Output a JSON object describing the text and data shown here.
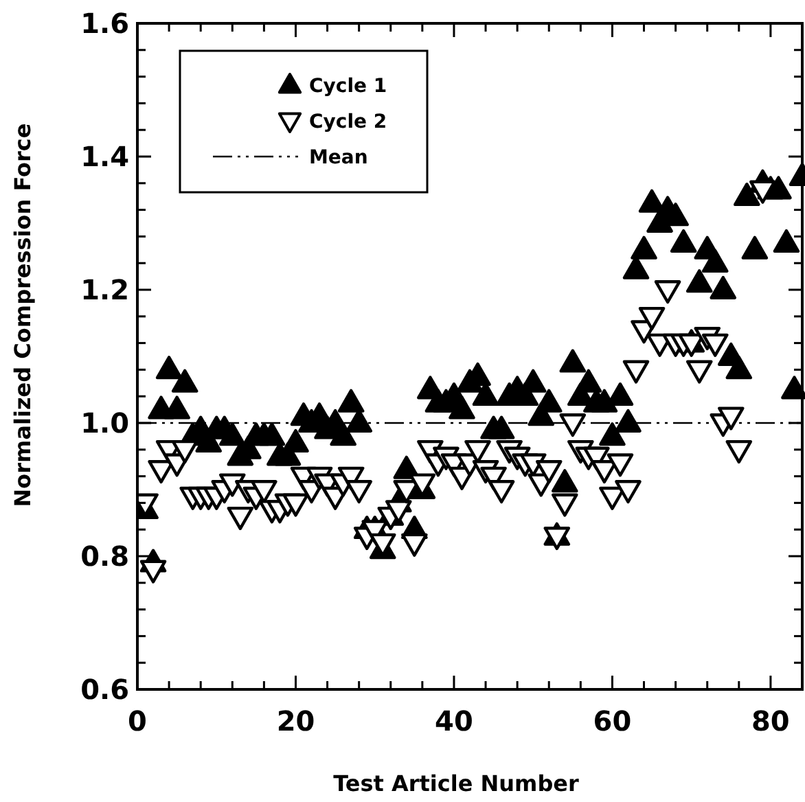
{
  "chart_data": {
    "type": "scatter",
    "xlabel": "Test Article Number",
    "ylabel": "Normalized Compression Force",
    "x": [
      1,
      2,
      3,
      4,
      5,
      6,
      7,
      8,
      9,
      10,
      11,
      12,
      13,
      14,
      15,
      16,
      17,
      18,
      19,
      20,
      21,
      22,
      23,
      24,
      25,
      26,
      27,
      28,
      29,
      30,
      31,
      32,
      33,
      34,
      35,
      36,
      37,
      38,
      39,
      40,
      41,
      42,
      43,
      44,
      45,
      46,
      47,
      48,
      49,
      50,
      51,
      52,
      53,
      54,
      55,
      56,
      57,
      58,
      59,
      60,
      61,
      62,
      63,
      64,
      65,
      66,
      67,
      68,
      69,
      70,
      71,
      72,
      73,
      74,
      75,
      76,
      77,
      78,
      79,
      80,
      81,
      82,
      83,
      84
    ],
    "series": [
      {
        "name": "Cycle 1",
        "color": "#000000",
        "marker": "triangle",
        "values": [
          0.87,
          0.79,
          1.02,
          1.08,
          1.02,
          1.06,
          0.98,
          0.99,
          0.97,
          0.99,
          0.99,
          0.98,
          0.95,
          0.96,
          0.98,
          0.98,
          0.98,
          0.95,
          0.95,
          0.97,
          1.01,
          1.0,
          1.01,
          0.99,
          1.0,
          0.98,
          1.03,
          1.0,
          0.84,
          0.84,
          0.81,
          0.86,
          0.88,
          0.93,
          0.84,
          0.9,
          1.05,
          1.03,
          1.03,
          1.04,
          1.02,
          1.06,
          1.07,
          1.04,
          0.99,
          0.99,
          1.04,
          1.05,
          1.04,
          1.06,
          1.01,
          1.03,
          0.83,
          0.91,
          1.09,
          1.04,
          1.06,
          1.03,
          1.03,
          0.98,
          1.04,
          1.0,
          1.23,
          1.26,
          1.33,
          1.3,
          1.32,
          1.31,
          1.27,
          1.12,
          1.21,
          1.26,
          1.24,
          1.2,
          1.1,
          1.08,
          1.34,
          1.26,
          1.36,
          1.35,
          1.35,
          1.27,
          1.05,
          1.37
        ]
      },
      {
        "name": "Cycle 2",
        "color": "#000000",
        "marker": "triangle-down",
        "values": [
          0.88,
          0.78,
          0.93,
          0.96,
          0.94,
          0.96,
          0.89,
          0.89,
          0.89,
          0.89,
          0.9,
          0.91,
          0.86,
          0.9,
          0.89,
          0.9,
          0.87,
          0.87,
          0.88,
          0.88,
          0.92,
          0.9,
          0.92,
          0.91,
          0.89,
          0.91,
          0.92,
          0.9,
          0.83,
          0.84,
          0.82,
          0.86,
          0.87,
          0.9,
          0.82,
          0.91,
          0.96,
          0.94,
          0.95,
          0.94,
          0.92,
          0.94,
          0.96,
          0.93,
          0.92,
          0.9,
          0.96,
          0.95,
          0.94,
          0.94,
          0.91,
          0.93,
          0.83,
          0.88,
          1.0,
          0.96,
          0.95,
          0.95,
          0.93,
          0.89,
          0.94,
          0.9,
          1.08,
          1.14,
          1.16,
          1.12,
          1.2,
          1.12,
          1.12,
          1.12,
          1.08,
          1.13,
          1.12,
          1.0,
          1.01,
          0.96,
          null,
          null,
          1.35,
          null,
          null,
          null,
          null,
          null
        ]
      }
    ],
    "ref_lines": [
      {
        "axis": "y",
        "value": 1.0,
        "label": "Mean",
        "color": "#000000"
      }
    ],
    "xlim": [
      0,
      84
    ],
    "xticks": [
      0,
      {
        "value": 4,
        "label": null
      },
      {
        "value": 8,
        "label": null
      },
      {
        "value": 12,
        "label": null
      },
      {
        "value": 16,
        "label": null
      },
      20,
      {
        "value": 24,
        "label": null
      },
      {
        "value": 28,
        "label": null
      },
      {
        "value": 32,
        "label": null
      },
      {
        "value": 36,
        "label": null
      },
      40,
      {
        "value": 44,
        "label": null
      },
      {
        "value": 48,
        "label": null
      },
      {
        "value": 52,
        "label": null
      },
      {
        "value": 56,
        "label": null
      },
      60,
      {
        "value": 64,
        "label": null
      },
      {
        "value": 68,
        "label": null
      },
      {
        "value": 72,
        "label": null
      },
      {
        "value": 76,
        "label": null
      },
      80
    ],
    "ylim": [
      0.6,
      1.6
    ],
    "yticks": [
      {
        "value": 0.6,
        "label": "0.6"
      },
      {
        "value": 0.64,
        "label": null
      },
      {
        "value": 0.68,
        "label": null
      },
      {
        "value": 0.72,
        "label": null
      },
      {
        "value": 0.76,
        "label": null
      },
      {
        "value": 0.8,
        "label": "0.8"
      },
      {
        "value": 0.84,
        "label": null
      },
      {
        "value": 0.88,
        "label": null
      },
      {
        "value": 0.92,
        "label": null
      },
      {
        "value": 0.96,
        "label": null
      },
      {
        "value": 1.0,
        "label": "1.0"
      },
      {
        "value": 1.04,
        "label": null
      },
      {
        "value": 1.08,
        "label": null
      },
      {
        "value": 1.12,
        "label": null
      },
      {
        "value": 1.16,
        "label": null
      },
      {
        "value": 1.2,
        "label": "1.2"
      },
      {
        "value": 1.24,
        "label": null
      },
      {
        "value": 1.28,
        "label": null
      },
      {
        "value": 1.32,
        "label": null
      },
      {
        "value": 1.36,
        "label": null
      },
      {
        "value": 1.4,
        "label": "1.4"
      },
      {
        "value": 1.44,
        "label": null
      },
      {
        "value": 1.48,
        "label": null
      },
      {
        "value": 1.52,
        "label": null
      },
      {
        "value": 1.56,
        "label": null
      },
      {
        "value": 1.6,
        "label": "1.6"
      }
    ],
    "grid": false,
    "legend": "top left"
  }
}
